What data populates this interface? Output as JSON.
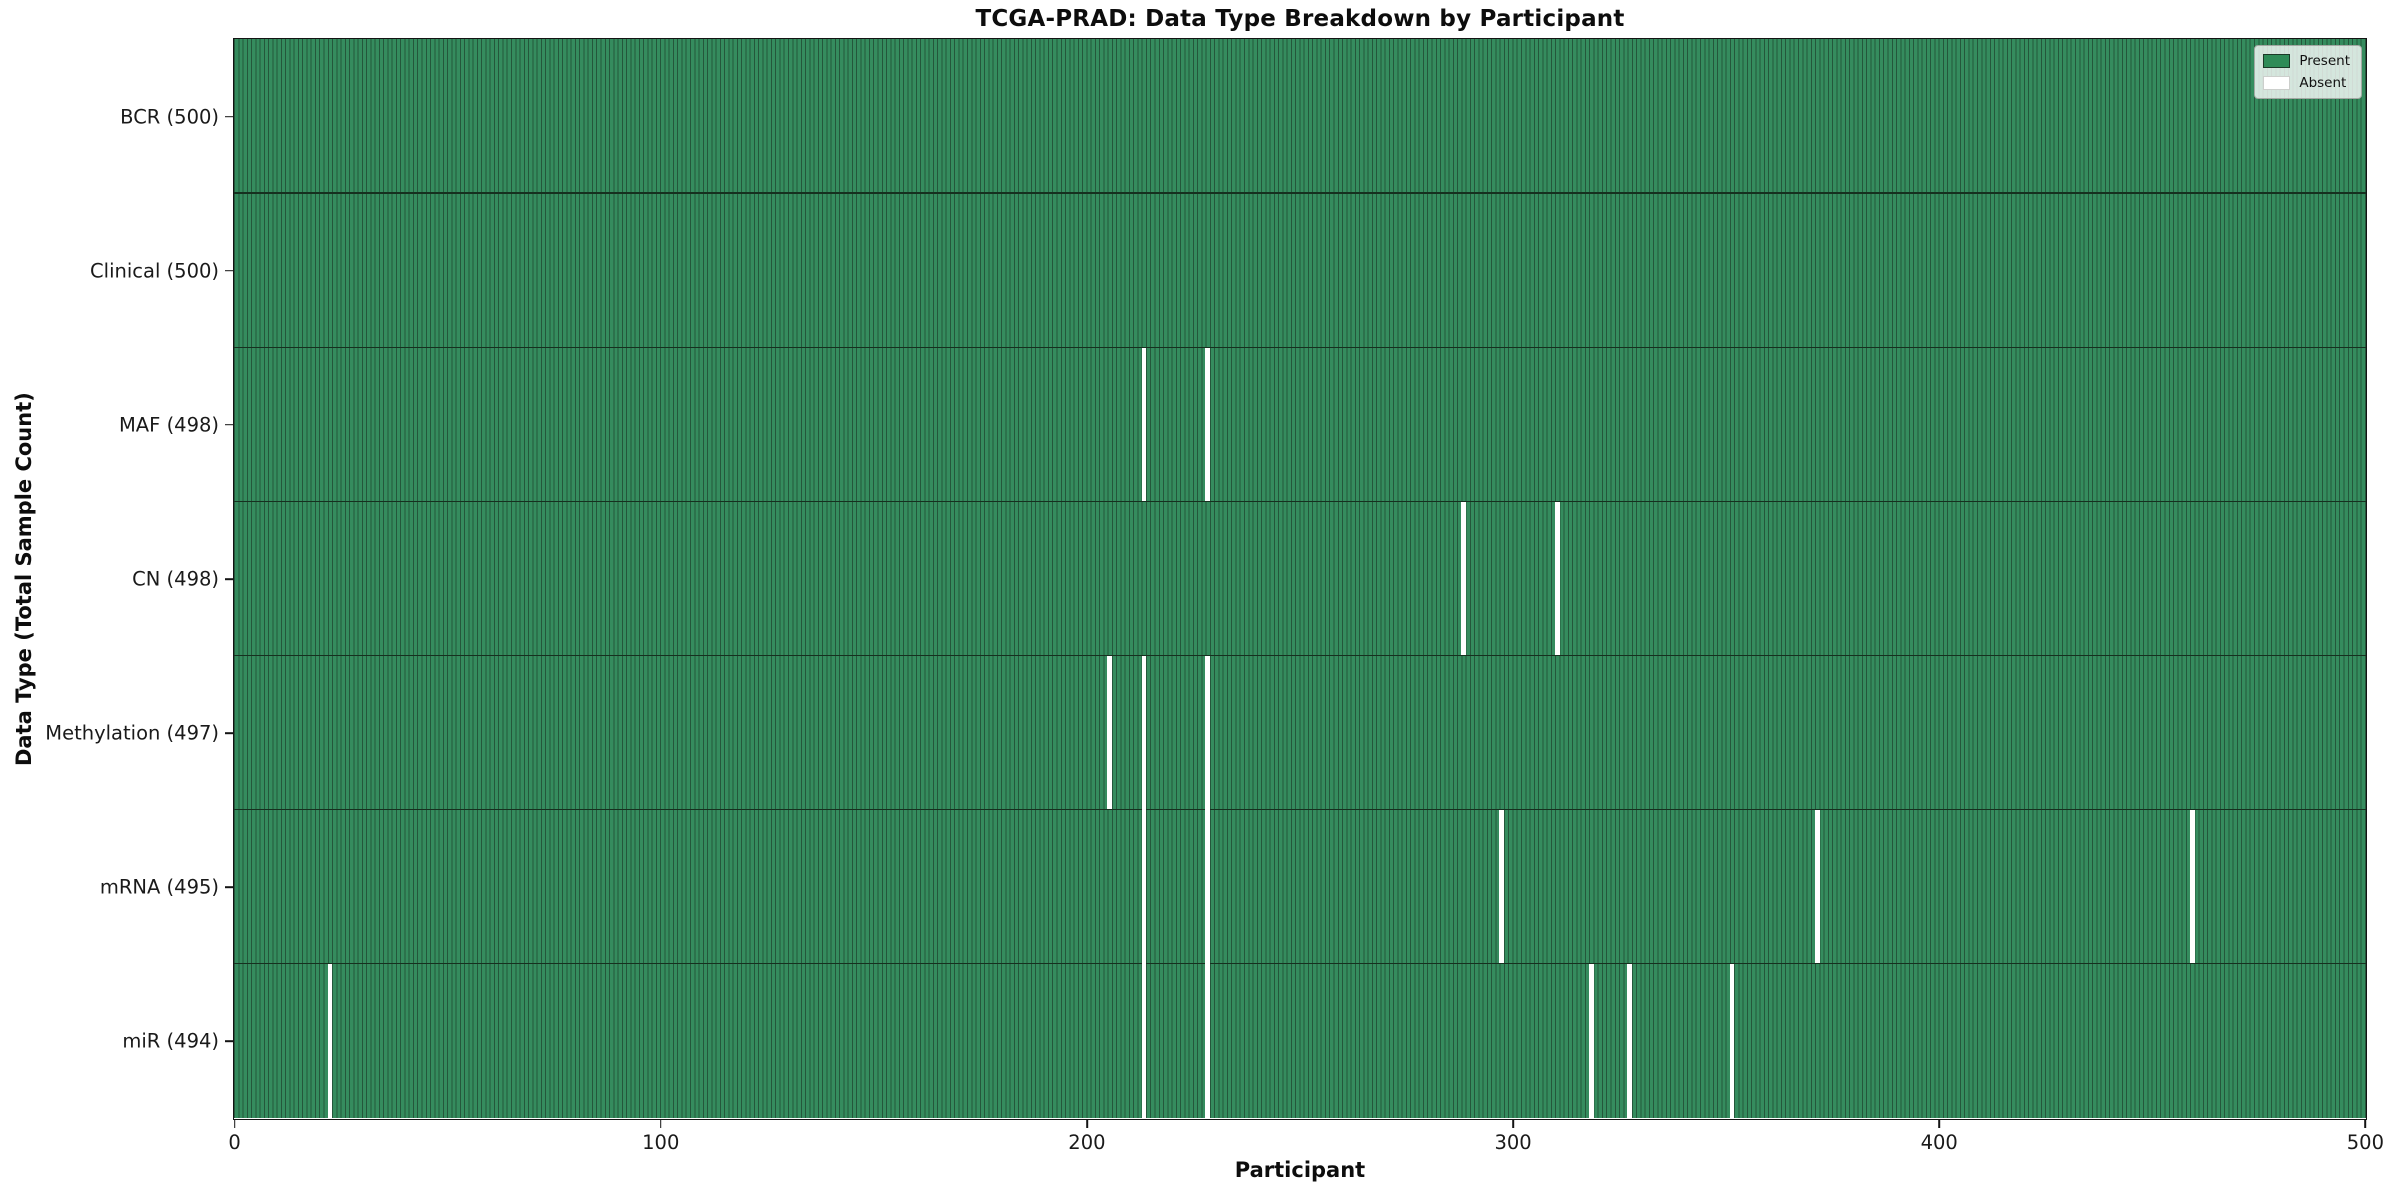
{
  "title": "TCGA-PRAD: Data Type Breakdown by Participant",
  "legend": {
    "present_label": "Present",
    "absent_label": "Absent"
  },
  "chart_data": {
    "type": "heatmap",
    "subtype": "presence-absence-matrix",
    "title": "TCGA-PRAD: Data Type Breakdown by Participant",
    "xlabel": "Participant",
    "ylabel": "Data Type (Total Sample Count)",
    "x_range": [
      0,
      500
    ],
    "total_participants": 500,
    "x_ticks": [
      0,
      100,
      200,
      300,
      400,
      500
    ],
    "legend_entries": [
      "Present",
      "Absent"
    ],
    "legend_position": "upper right",
    "grid": false,
    "colors": {
      "present_fill": "#358c5e",
      "present_edge": "#24573b",
      "absent_fill": "#ffffff",
      "separator": "#16301f",
      "legend_present_swatch": "#2e8b57"
    },
    "rows": [
      {
        "name": "BCR",
        "label": "BCR (500)",
        "total": 500,
        "absent_participants": []
      },
      {
        "name": "Clinical",
        "label": "Clinical (500)",
        "total": 500,
        "absent_participants": []
      },
      {
        "name": "MAF",
        "label": "MAF (498)",
        "total": 498,
        "absent_participants": [
          213,
          228
        ]
      },
      {
        "name": "CN",
        "label": "CN (498)",
        "total": 498,
        "absent_participants": [
          288,
          310
        ]
      },
      {
        "name": "Methylation",
        "label": "Methylation (497)",
        "total": 497,
        "absent_participants": [
          205,
          213,
          228
        ]
      },
      {
        "name": "mRNA",
        "label": "mRNA (495)",
        "total": 495,
        "absent_participants": [
          213,
          228,
          297,
          371,
          459
        ]
      },
      {
        "name": "miR",
        "label": "miR (494)",
        "total": 494,
        "absent_participants": [
          22,
          213,
          228,
          318,
          327,
          351
        ]
      }
    ]
  }
}
